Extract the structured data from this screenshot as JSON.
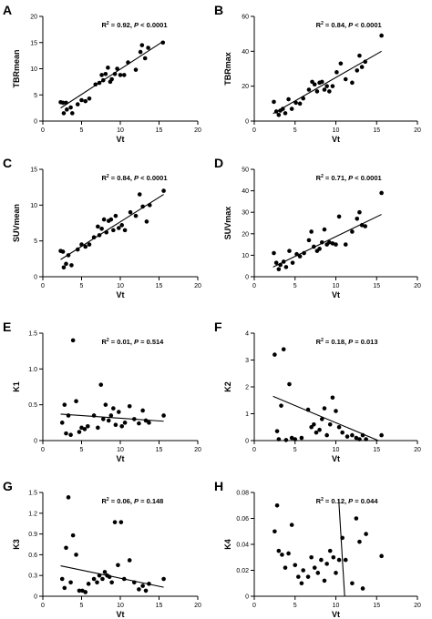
{
  "chart_data": [
    {
      "letter": "A",
      "type": "scatter",
      "title": "",
      "xlabel": "Vt",
      "ylabel": "TBRmean",
      "xlim": [
        0,
        20
      ],
      "ylim": [
        0,
        20
      ],
      "xticks": [
        0,
        5,
        10,
        15,
        20
      ],
      "yticks": [
        0,
        5,
        10,
        15,
        20
      ],
      "stats": {
        "r2": "0.92",
        "p": "< 0.0001"
      },
      "fit": [
        [
          2.3,
          2.5
        ],
        [
          15.6,
          15.3
        ]
      ],
      "points": [
        [
          2.3,
          3.6
        ],
        [
          2.6,
          3.5
        ],
        [
          2.7,
          1.5
        ],
        [
          3.0,
          3.5
        ],
        [
          3.1,
          2.2
        ],
        [
          3.6,
          2.6
        ],
        [
          3.8,
          1.5
        ],
        [
          4.5,
          3.2
        ],
        [
          5.0,
          4.0
        ],
        [
          5.5,
          3.8
        ],
        [
          6.0,
          4.3
        ],
        [
          6.8,
          7.0
        ],
        [
          7.3,
          7.3
        ],
        [
          7.6,
          8.8
        ],
        [
          7.8,
          7.8
        ],
        [
          8.1,
          9.0
        ],
        [
          8.4,
          10.2
        ],
        [
          8.7,
          7.5
        ],
        [
          8.9,
          8.0
        ],
        [
          9.3,
          9.0
        ],
        [
          9.6,
          10.0
        ],
        [
          10.0,
          8.8
        ],
        [
          10.5,
          8.8
        ],
        [
          11.0,
          11.2
        ],
        [
          12.0,
          9.8
        ],
        [
          12.6,
          13.2
        ],
        [
          12.8,
          14.5
        ],
        [
          13.2,
          12.0
        ],
        [
          13.6,
          14.0
        ],
        [
          15.5,
          15.0
        ]
      ]
    },
    {
      "letter": "B",
      "type": "scatter",
      "title": "",
      "xlabel": "Vt",
      "ylabel": "TBRmax",
      "xlim": [
        0,
        20
      ],
      "ylim": [
        0,
        60
      ],
      "xticks": [
        0,
        5,
        10,
        15,
        20
      ],
      "yticks": [
        0,
        20,
        40,
        60
      ],
      "stats": {
        "r2": "0.84",
        "p": "< 0.0001"
      },
      "fit": [
        [
          2.3,
          4.3
        ],
        [
          15.6,
          40.0
        ]
      ],
      "points": [
        [
          2.4,
          11.0
        ],
        [
          2.7,
          5.5
        ],
        [
          3.0,
          3.5
        ],
        [
          3.2,
          6.0
        ],
        [
          3.5,
          7.0
        ],
        [
          3.8,
          4.5
        ],
        [
          4.2,
          12.5
        ],
        [
          4.6,
          7.0
        ],
        [
          5.1,
          10.5
        ],
        [
          5.6,
          10.0
        ],
        [
          6.0,
          13.0
        ],
        [
          6.7,
          18.0
        ],
        [
          7.1,
          22.5
        ],
        [
          7.4,
          21.0
        ],
        [
          7.7,
          17.0
        ],
        [
          8.0,
          22.0
        ],
        [
          8.3,
          22.5
        ],
        [
          8.6,
          18.0
        ],
        [
          8.9,
          20.0
        ],
        [
          9.2,
          17.0
        ],
        [
          9.6,
          20.0
        ],
        [
          10.1,
          28.0
        ],
        [
          10.6,
          33.0
        ],
        [
          11.2,
          24.0
        ],
        [
          12.0,
          22.0
        ],
        [
          12.6,
          29.0
        ],
        [
          12.9,
          37.5
        ],
        [
          13.2,
          31.0
        ],
        [
          13.6,
          34.0
        ],
        [
          15.6,
          49.0
        ]
      ]
    },
    {
      "letter": "C",
      "type": "scatter",
      "title": "",
      "xlabel": "Vt",
      "ylabel": "SUVmean",
      "xlim": [
        0,
        20
      ],
      "ylim": [
        0,
        15
      ],
      "xticks": [
        0,
        5,
        10,
        15,
        20
      ],
      "yticks": [
        0,
        5,
        10,
        15
      ],
      "stats": {
        "r2": "0.84",
        "p": "< 0.0001"
      },
      "fit": [
        [
          2.3,
          2.4
        ],
        [
          15.6,
          11.5
        ]
      ],
      "points": [
        [
          2.3,
          3.6
        ],
        [
          2.6,
          3.5
        ],
        [
          2.7,
          1.3
        ],
        [
          3.0,
          1.8
        ],
        [
          3.3,
          3.0
        ],
        [
          3.7,
          1.6
        ],
        [
          4.5,
          3.8
        ],
        [
          5.0,
          4.5
        ],
        [
          5.5,
          4.2
        ],
        [
          6.0,
          4.5
        ],
        [
          6.6,
          5.5
        ],
        [
          7.1,
          7.0
        ],
        [
          7.3,
          5.8
        ],
        [
          7.6,
          6.7
        ],
        [
          7.9,
          8.0
        ],
        [
          8.2,
          6.2
        ],
        [
          8.5,
          7.8
        ],
        [
          8.8,
          8.0
        ],
        [
          9.1,
          6.5
        ],
        [
          9.4,
          8.5
        ],
        [
          9.8,
          6.8
        ],
        [
          10.2,
          7.2
        ],
        [
          10.6,
          6.5
        ],
        [
          11.3,
          9.0
        ],
        [
          12.0,
          8.5
        ],
        [
          12.5,
          11.5
        ],
        [
          12.9,
          9.8
        ],
        [
          13.4,
          7.7
        ],
        [
          13.8,
          10.0
        ],
        [
          15.6,
          12.0
        ]
      ]
    },
    {
      "letter": "D",
      "type": "scatter",
      "title": "",
      "xlabel": "Vt",
      "ylabel": "SUVmax",
      "xlim": [
        0,
        20
      ],
      "ylim": [
        0,
        50
      ],
      "xticks": [
        0,
        5,
        10,
        15,
        20
      ],
      "yticks": [
        0,
        10,
        20,
        30,
        40,
        50
      ],
      "stats": {
        "r2": "0.71",
        "p": "< 0.0001"
      },
      "fit": [
        [
          2.3,
          4.5
        ],
        [
          15.6,
          29.0
        ]
      ],
      "points": [
        [
          2.4,
          11.0
        ],
        [
          2.7,
          6.5
        ],
        [
          3.0,
          3.5
        ],
        [
          3.2,
          5.5
        ],
        [
          3.6,
          7.0
        ],
        [
          3.9,
          4.5
        ],
        [
          4.3,
          12.0
        ],
        [
          4.7,
          6.5
        ],
        [
          5.2,
          10.5
        ],
        [
          5.6,
          9.5
        ],
        [
          6.1,
          11.0
        ],
        [
          6.7,
          17.0
        ],
        [
          7.0,
          21.0
        ],
        [
          7.3,
          14.0
        ],
        [
          7.7,
          12.0
        ],
        [
          8.0,
          13.0
        ],
        [
          8.3,
          16.0
        ],
        [
          8.6,
          22.0
        ],
        [
          8.9,
          15.0
        ],
        [
          9.2,
          16.0
        ],
        [
          9.6,
          15.5
        ],
        [
          10.0,
          15.0
        ],
        [
          10.4,
          28.0
        ],
        [
          11.2,
          15.0
        ],
        [
          12.0,
          21.0
        ],
        [
          12.6,
          27.0
        ],
        [
          12.9,
          30.0
        ],
        [
          13.2,
          24.0
        ],
        [
          13.6,
          23.5
        ],
        [
          15.6,
          39.0
        ]
      ]
    },
    {
      "letter": "E",
      "type": "scatter",
      "title": "",
      "xlabel": "Vt",
      "ylabel": "K1",
      "xlim": [
        0,
        20
      ],
      "ylim": [
        0,
        1.5
      ],
      "xticks": [
        0,
        5,
        10,
        15,
        20
      ],
      "yticks": [
        0,
        0.5,
        1.0,
        1.5
      ],
      "stats": {
        "r2": "0.01",
        "p": "0.514"
      },
      "fit": [
        [
          2.3,
          0.37
        ],
        [
          15.6,
          0.27
        ]
      ],
      "points": [
        [
          2.5,
          0.25
        ],
        [
          2.8,
          0.5
        ],
        [
          3.0,
          0.1
        ],
        [
          3.3,
          0.35
        ],
        [
          3.6,
          0.08
        ],
        [
          3.9,
          1.4
        ],
        [
          4.3,
          0.55
        ],
        [
          4.7,
          0.12
        ],
        [
          5.0,
          0.18
        ],
        [
          5.4,
          0.16
        ],
        [
          5.8,
          0.2
        ],
        [
          6.6,
          0.35
        ],
        [
          7.1,
          0.18
        ],
        [
          7.5,
          0.78
        ],
        [
          7.8,
          0.3
        ],
        [
          8.1,
          0.5
        ],
        [
          8.5,
          0.28
        ],
        [
          8.8,
          0.35
        ],
        [
          9.1,
          0.45
        ],
        [
          9.4,
          0.22
        ],
        [
          9.8,
          0.4
        ],
        [
          10.2,
          0.2
        ],
        [
          10.6,
          0.25
        ],
        [
          11.2,
          0.48
        ],
        [
          11.8,
          0.3
        ],
        [
          12.4,
          0.24
        ],
        [
          12.9,
          0.42
        ],
        [
          13.3,
          0.28
        ],
        [
          13.7,
          0.25
        ],
        [
          15.6,
          0.35
        ]
      ]
    },
    {
      "letter": "F",
      "type": "scatter",
      "title": "",
      "xlabel": "Vt",
      "ylabel": "K2",
      "xlim": [
        0,
        20
      ],
      "ylim": [
        0,
        4
      ],
      "xticks": [
        0,
        5,
        10,
        15,
        20
      ],
      "yticks": [
        0,
        1,
        2,
        3,
        4
      ],
      "stats": {
        "r2": "0.18",
        "p": "0.013"
      },
      "fit": [
        [
          2.3,
          1.65
        ],
        [
          15.6,
          -0.05
        ]
      ],
      "points": [
        [
          2.5,
          3.2
        ],
        [
          2.8,
          0.35
        ],
        [
          3.0,
          0.05
        ],
        [
          3.3,
          1.3
        ],
        [
          3.6,
          3.4
        ],
        [
          3.9,
          0.02
        ],
        [
          4.3,
          2.1
        ],
        [
          4.6,
          0.1
        ],
        [
          5.0,
          0.05
        ],
        [
          5.8,
          0.1
        ],
        [
          6.6,
          1.15
        ],
        [
          7.0,
          0.5
        ],
        [
          7.3,
          0.6
        ],
        [
          7.6,
          0.3
        ],
        [
          8.0,
          0.4
        ],
        [
          8.3,
          0.8
        ],
        [
          8.6,
          1.2
        ],
        [
          8.9,
          0.2
        ],
        [
          9.3,
          0.6
        ],
        [
          9.6,
          1.6
        ],
        [
          10.0,
          1.1
        ],
        [
          10.4,
          0.5
        ],
        [
          10.8,
          0.3
        ],
        [
          11.4,
          0.15
        ],
        [
          12.0,
          0.2
        ],
        [
          12.5,
          0.1
        ],
        [
          12.9,
          0.05
        ],
        [
          13.3,
          0.2
        ],
        [
          13.7,
          0.05
        ],
        [
          15.6,
          0.2
        ]
      ]
    },
    {
      "letter": "G",
      "type": "scatter",
      "title": "",
      "xlabel": "Vt",
      "ylabel": "K3",
      "xlim": [
        0,
        20
      ],
      "ylim": [
        0,
        1.5
      ],
      "xticks": [
        0,
        5,
        10,
        15,
        20
      ],
      "yticks": [
        0,
        0.3,
        0.6,
        0.9,
        1.2,
        1.5
      ],
      "stats": {
        "r2": "0.06",
        "p": "0.148"
      },
      "fit": [
        [
          2.3,
          0.44
        ],
        [
          15.6,
          0.13
        ]
      ],
      "points": [
        [
          2.5,
          0.25
        ],
        [
          2.8,
          0.12
        ],
        [
          3.0,
          0.7
        ],
        [
          3.3,
          1.43
        ],
        [
          3.6,
          0.2
        ],
        [
          3.9,
          0.88
        ],
        [
          4.3,
          0.6
        ],
        [
          4.7,
          0.08
        ],
        [
          5.1,
          0.08
        ],
        [
          5.5,
          0.06
        ],
        [
          5.9,
          0.18
        ],
        [
          6.6,
          0.25
        ],
        [
          7.0,
          0.2
        ],
        [
          7.3,
          0.3
        ],
        [
          7.7,
          0.25
        ],
        [
          8.0,
          0.35
        ],
        [
          8.3,
          0.3
        ],
        [
          8.6,
          0.28
        ],
        [
          8.9,
          0.2
        ],
        [
          9.3,
          1.07
        ],
        [
          9.7,
          0.45
        ],
        [
          10.1,
          1.07
        ],
        [
          10.5,
          0.25
        ],
        [
          11.2,
          0.52
        ],
        [
          11.8,
          0.2
        ],
        [
          12.4,
          0.1
        ],
        [
          12.9,
          0.15
        ],
        [
          13.3,
          0.08
        ],
        [
          13.7,
          0.18
        ],
        [
          15.6,
          0.25
        ]
      ]
    },
    {
      "letter": "H",
      "type": "scatter",
      "title": "",
      "xlabel": "Vt",
      "ylabel": "K4",
      "xlim": [
        0,
        20
      ],
      "ylim": [
        0,
        0.08
      ],
      "xticks": [
        0,
        5,
        10,
        15,
        20
      ],
      "yticks": [
        0,
        0.02,
        0.04,
        0.06,
        0.08
      ],
      "stats": {
        "r2": "0.12",
        "p": "0.044"
      },
      "fit": [
        [
          10.35,
          0.075
        ],
        [
          11.1,
          -0.002
        ]
      ],
      "points": [
        [
          2.5,
          0.05
        ],
        [
          2.8,
          0.07
        ],
        [
          3.0,
          0.035
        ],
        [
          3.4,
          0.032
        ],
        [
          3.8,
          0.022
        ],
        [
          4.2,
          0.033
        ],
        [
          4.6,
          0.055
        ],
        [
          5.0,
          0.024
        ],
        [
          5.4,
          0.015
        ],
        [
          5.8,
          0.01
        ],
        [
          6.0,
          0.02
        ],
        [
          6.6,
          0.015
        ],
        [
          7.0,
          0.03
        ],
        [
          7.4,
          0.022
        ],
        [
          7.8,
          0.018
        ],
        [
          8.2,
          0.028
        ],
        [
          8.6,
          0.012
        ],
        [
          8.9,
          0.025
        ],
        [
          9.3,
          0.035
        ],
        [
          9.7,
          0.03
        ],
        [
          10.0,
          0.018
        ],
        [
          10.4,
          0.028
        ],
        [
          10.8,
          0.045
        ],
        [
          11.2,
          0.028
        ],
        [
          12.0,
          0.01
        ],
        [
          12.5,
          0.06
        ],
        [
          12.9,
          0.042
        ],
        [
          13.3,
          0.006
        ],
        [
          13.7,
          0.048
        ],
        [
          15.6,
          0.031
        ]
      ]
    }
  ]
}
